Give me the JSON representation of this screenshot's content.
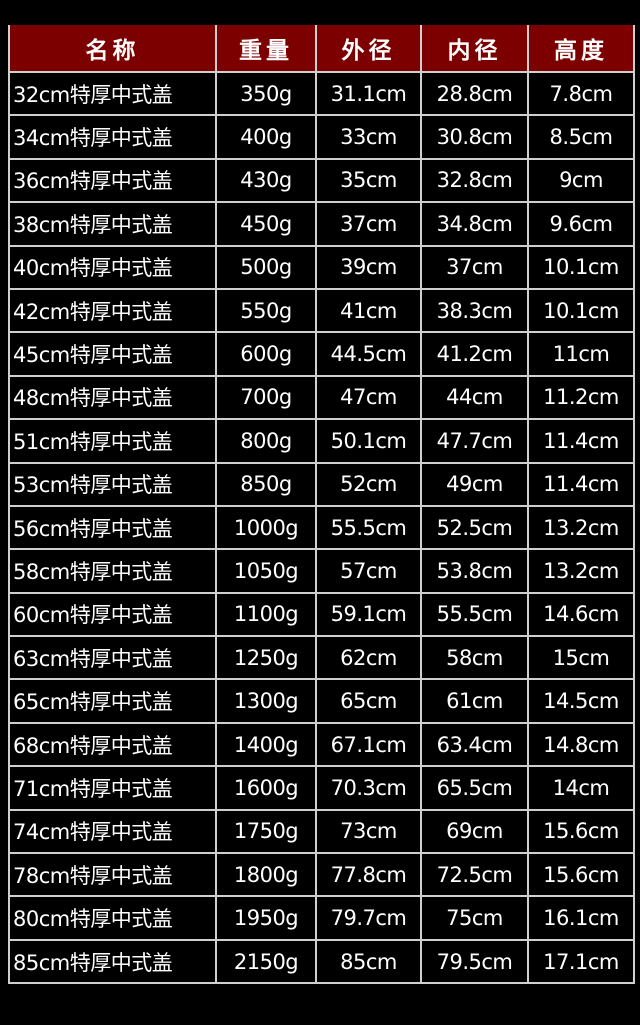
{
  "colors": {
    "header_bg": "#7c0000",
    "background": "#000000",
    "text": "#ffffff",
    "border": "#cfcfcf"
  },
  "table": {
    "headers": [
      "名称",
      "重量",
      "外径",
      "内径",
      "高度"
    ],
    "rows": [
      [
        "32cm特厚中式盖",
        "350g",
        "31.1cm",
        "28.8cm",
        "7.8cm"
      ],
      [
        "34cm特厚中式盖",
        "400g",
        "33cm",
        "30.8cm",
        "8.5cm"
      ],
      [
        "36cm特厚中式盖",
        "430g",
        "35cm",
        "32.8cm",
        "9cm"
      ],
      [
        "38cm特厚中式盖",
        "450g",
        "37cm",
        "34.8cm",
        "9.6cm"
      ],
      [
        "40cm特厚中式盖",
        "500g",
        "39cm",
        "37cm",
        "10.1cm"
      ],
      [
        "42cm特厚中式盖",
        "550g",
        "41cm",
        "38.3cm",
        "10.1cm"
      ],
      [
        "45cm特厚中式盖",
        "600g",
        "44.5cm",
        "41.2cm",
        "11cm"
      ],
      [
        "48cm特厚中式盖",
        "700g",
        "47cm",
        "44cm",
        "11.2cm"
      ],
      [
        "51cm特厚中式盖",
        "800g",
        "50.1cm",
        "47.7cm",
        "11.4cm"
      ],
      [
        "53cm特厚中式盖",
        "850g",
        "52cm",
        "49cm",
        "11.4cm"
      ],
      [
        "56cm特厚中式盖",
        "1000g",
        "55.5cm",
        "52.5cm",
        "13.2cm"
      ],
      [
        "58cm特厚中式盖",
        "1050g",
        "57cm",
        "53.8cm",
        "13.2cm"
      ],
      [
        "60cm特厚中式盖",
        "1100g",
        "59.1cm",
        "55.5cm",
        "14.6cm"
      ],
      [
        "63cm特厚中式盖",
        "1250g",
        "62cm",
        "58cm",
        "15cm"
      ],
      [
        "65cm特厚中式盖",
        "1300g",
        "65cm",
        "61cm",
        "14.5cm"
      ],
      [
        "68cm特厚中式盖",
        "1400g",
        "67.1cm",
        "63.4cm",
        "14.8cm"
      ],
      [
        "71cm特厚中式盖",
        "1600g",
        "70.3cm",
        "65.5cm",
        "14cm"
      ],
      [
        "74cm特厚中式盖",
        "1750g",
        "73cm",
        "69cm",
        "15.6cm"
      ],
      [
        "78cm特厚中式盖",
        "1800g",
        "77.8cm",
        "72.5cm",
        "15.6cm"
      ],
      [
        "80cm特厚中式盖",
        "1950g",
        "79.7cm",
        "75cm",
        "16.1cm"
      ],
      [
        "85cm特厚中式盖",
        "2150g",
        "85cm",
        "79.5cm",
        "17.1cm"
      ]
    ]
  }
}
